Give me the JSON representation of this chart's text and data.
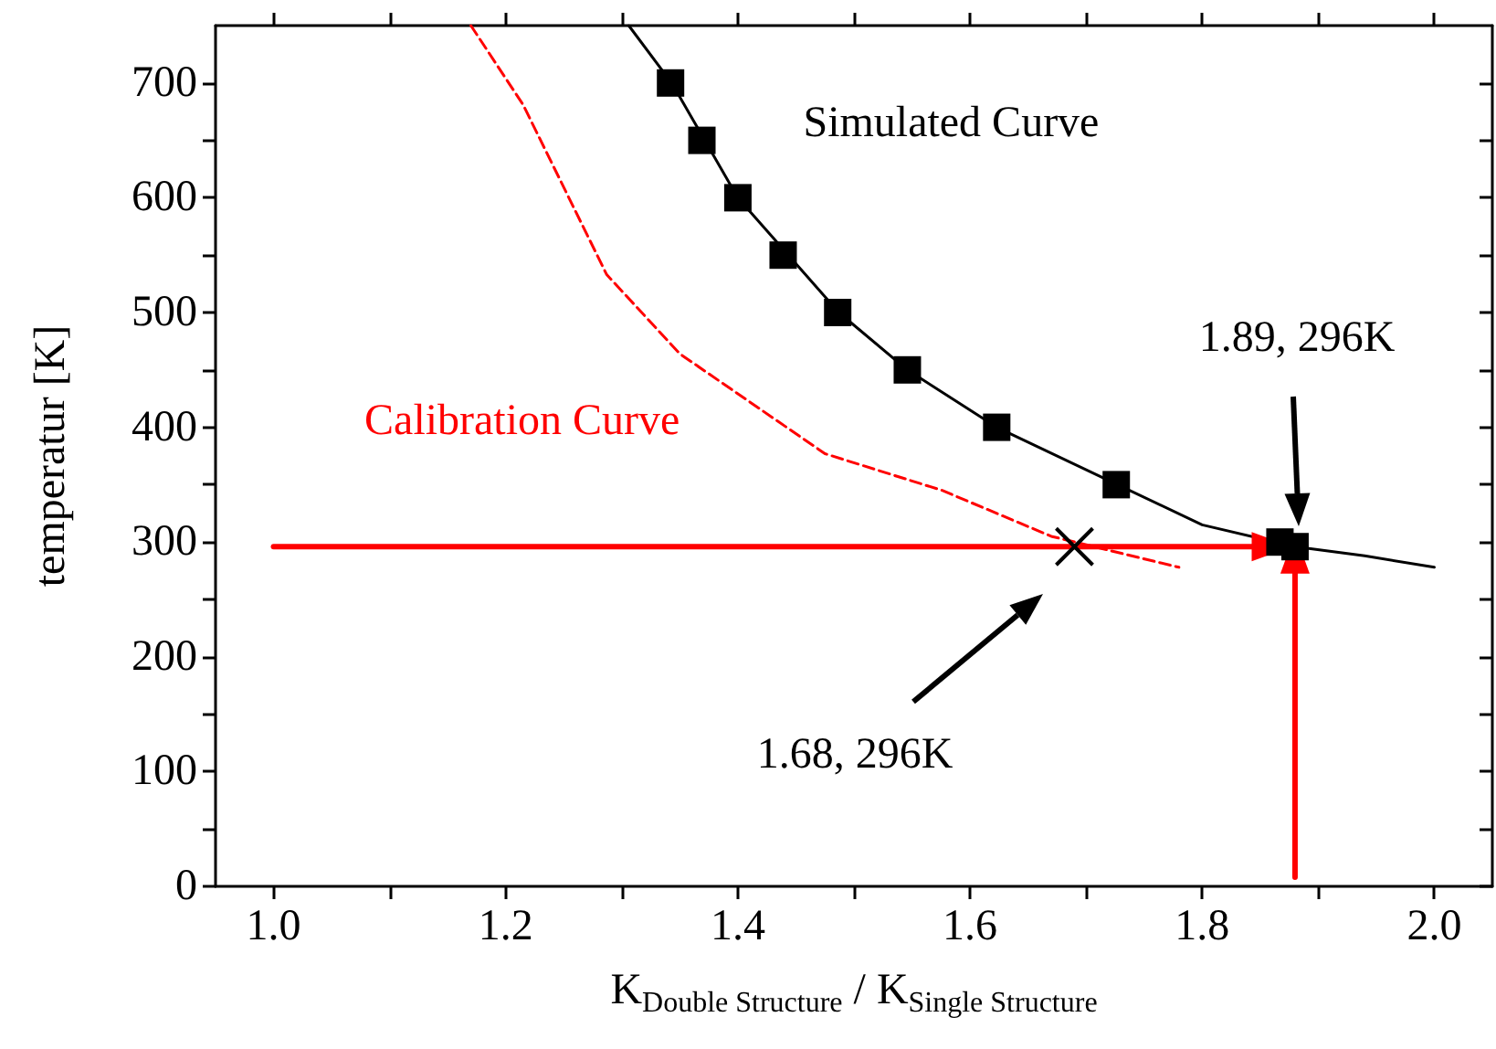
{
  "chart_data": {
    "type": "line",
    "xlabel": "K$_{Double Structure}$ / K$_{Single Structure}$",
    "ylabel": "temperatur [K]",
    "xlim": [
      0.95,
      2.05
    ],
    "xticks": [
      {
        "value": 1.0,
        "label": "1.0"
      },
      {
        "value": 1.1,
        "label": null
      },
      1.2,
      {
        "value": 1.3,
        "label": null
      },
      1.4,
      {
        "value": 1.5,
        "label": null
      },
      1.6,
      {
        "value": 1.7,
        "label": null
      },
      1.8,
      {
        "value": 1.9,
        "label": null
      },
      {
        "value": 2.0,
        "label": "2.0"
      }
    ],
    "ylim": [
      0,
      750
    ],
    "yticks": [
      0,
      {
        "value": 50,
        "label": null
      },
      100,
      {
        "value": 150,
        "label": null
      },
      200,
      {
        "value": 250,
        "label": null
      },
      300,
      {
        "value": 350,
        "label": null
      },
      400,
      {
        "value": 450,
        "label": null
      },
      500,
      {
        "value": 550,
        "label": null
      },
      600,
      {
        "value": 650,
        "label": null
      },
      700
    ],
    "grid": false,
    "legend": false,
    "series": [
      {
        "type": "scatter",
        "marker": "square",
        "color": "#000000",
        "x": [
          1.342,
          1.369,
          1.4,
          1.439,
          1.486,
          1.546,
          1.623,
          1.726,
          1.867,
          1.88
        ],
        "values": [
          700,
          650,
          600,
          550,
          500,
          450,
          400,
          350,
          300,
          296
        ]
      },
      {
        "name": "Simulated Curve",
        "color": "#000000",
        "marker": "none",
        "line_style": "solid",
        "x": [
          1.306,
          1.343,
          1.4,
          1.487,
          1.546,
          1.623,
          1.727,
          1.8,
          1.88,
          1.94,
          2.0
        ],
        "values": [
          750,
          700,
          600,
          500,
          450,
          400,
          350,
          315,
          296,
          288,
          278
        ]
      },
      {
        "name": "Calibration Curve",
        "color": "#ff0000",
        "marker": "none",
        "line_style": "dashed",
        "x": [
          1.17,
          1.215,
          1.287,
          1.35,
          1.475,
          1.576,
          1.67,
          1.78
        ],
        "values": [
          750,
          681,
          533,
          464,
          377,
          345,
          305,
          278
        ]
      },
      {
        "type": "scatter",
        "marker": "cross",
        "color": "#000000",
        "x": [
          1.69
        ],
        "values": [
          296
        ]
      },
      {
        "marker": "triangle",
        "color": "#ff0000",
        "line_style": "solid",
        "x": [
          1.0,
          1.86
        ],
        "values": [
          296,
          296
        ]
      },
      {
        "marker": "triangle",
        "color": "#ff0000",
        "line_style": "solid",
        "x": [
          1.88,
          1.88
        ],
        "values": [
          8,
          290
        ]
      }
    ],
    "annotations": [
      "1.89, 296K",
      "1.68, 296K"
    ]
  }
}
